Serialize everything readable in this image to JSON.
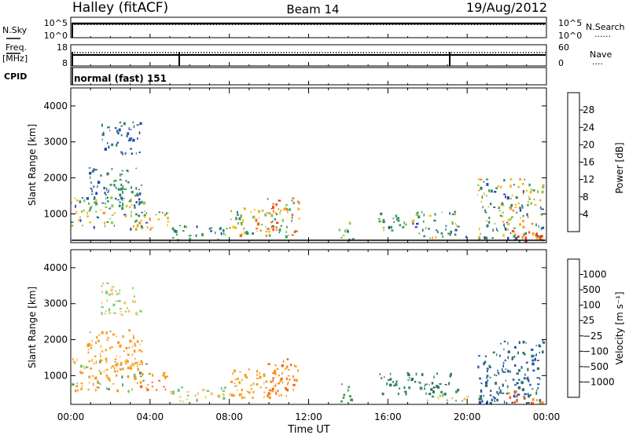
{
  "header": {
    "title": "Halley (fitACF)",
    "beam": "Beam 14",
    "date": "19/Aug/2012"
  },
  "nsky_panel": {
    "left_label": "N.Sky",
    "right_label": "N.Search",
    "left_ticks": [
      "10^5",
      "10^0"
    ],
    "right_ticks": [
      "10^5",
      "10^0"
    ],
    "right_legend_marker": "······"
  },
  "freq_panel": {
    "left_label_line1": "Freq.",
    "left_label_line2": "[MHz]",
    "right_label": "Nave",
    "left_ticks": [
      "18",
      "8"
    ],
    "right_ticks": [
      "60",
      "0"
    ],
    "right_legend_marker": "····"
  },
  "cpid_panel": {
    "label": "CPID",
    "mode": "normal (fast) 151"
  },
  "power_colorbar": {
    "label": "Power [dB]",
    "ticks": [
      "28",
      "24",
      "20",
      "16",
      "12",
      "8",
      "4"
    ],
    "colors": [
      "#0000ff",
      "#2548b2",
      "#2f7f6f",
      "#39a050",
      "#8cc84a",
      "#f0c010",
      "#f79a18",
      "#f06a1c",
      "#ff3a16",
      "#ff0000"
    ]
  },
  "velocity_colorbar": {
    "label": "Velocity [m s⁻¹]",
    "ticks": [
      "1000",
      "500",
      "100",
      "25",
      "−25",
      "−100",
      "−500",
      "−1000"
    ],
    "colors": [
      "#ff0000",
      "#f2661e",
      "#f79a18",
      "#f3c56a",
      "#b8b8b8",
      "#6cc86a",
      "#3c9a4c",
      "#2d7468",
      "#2552a8",
      "#1f3cc8"
    ]
  },
  "time_axis": {
    "label": "Time UT",
    "ticks": [
      "00:00",
      "04:00",
      "08:00",
      "12:00",
      "16:00",
      "20:00",
      "00:00"
    ]
  },
  "chart_data": [
    {
      "type": "heatmap",
      "name": "power",
      "ylabel": "Slant Range [km]",
      "xlabel": "Time UT",
      "xlim": [
        0,
        24
      ],
      "ylim": [
        200,
        4500
      ],
      "yticks": [
        "1000",
        "2000",
        "3000",
        "4000"
      ],
      "colorbar_range": [
        0,
        30
      ],
      "echo_regions": [
        {
          "t": [
            0.0,
            3.8
          ],
          "range": [
            600,
            1500
          ],
          "level": [
            4,
            20
          ]
        },
        {
          "t": [
            0.8,
            3.6
          ],
          "range": [
            1200,
            2300
          ],
          "level": [
            4,
            12
          ]
        },
        {
          "t": [
            1.5,
            3.5
          ],
          "range": [
            2700,
            3600
          ],
          "level": [
            4,
            8
          ]
        },
        {
          "t": [
            3.2,
            5.0
          ],
          "range": [
            600,
            1100
          ],
          "level": [
            8,
            24
          ]
        },
        {
          "t": [
            5.0,
            8.0
          ],
          "range": [
            300,
            700
          ],
          "level": [
            4,
            14
          ]
        },
        {
          "t": [
            8.0,
            11.0
          ],
          "range": [
            400,
            1200
          ],
          "level": [
            8,
            24
          ]
        },
        {
          "t": [
            9.8,
            11.5
          ],
          "range": [
            400,
            1500
          ],
          "level": [
            8,
            26
          ]
        },
        {
          "t": [
            13.5,
            14.2
          ],
          "range": [
            300,
            800
          ],
          "level": [
            8,
            14
          ]
        },
        {
          "t": [
            15.5,
            19.5
          ],
          "range": [
            500,
            1100
          ],
          "level": [
            4,
            16
          ]
        },
        {
          "t": [
            17.5,
            20.0
          ],
          "range": [
            300,
            500
          ],
          "level": [
            4,
            20
          ]
        },
        {
          "t": [
            20.5,
            23.8
          ],
          "range": [
            250,
            2000
          ],
          "level": [
            4,
            20
          ]
        },
        {
          "t": [
            22.0,
            23.8
          ],
          "range": [
            250,
            600
          ],
          "level": [
            18,
            30
          ]
        }
      ]
    },
    {
      "type": "heatmap",
      "name": "velocity",
      "ylabel": "Slant Range [km]",
      "xlabel": "Time UT",
      "xlim": [
        0,
        24
      ],
      "ylim": [
        200,
        4500
      ],
      "yticks": [
        "1000",
        "2000",
        "3000",
        "4000"
      ],
      "colorbar_range": [
        -1000,
        1000
      ],
      "echo_regions": [
        {
          "t": [
            0.0,
            3.8
          ],
          "range": [
            600,
            1500
          ],
          "velocity": [
            -500,
            100
          ]
        },
        {
          "t": [
            0.8,
            3.6
          ],
          "range": [
            1200,
            2300
          ],
          "velocity": [
            -500,
            -25
          ]
        },
        {
          "t": [
            1.5,
            3.5
          ],
          "range": [
            2700,
            3600
          ],
          "velocity": [
            -100,
            25
          ]
        },
        {
          "t": [
            3.2,
            5.0
          ],
          "range": [
            600,
            1100
          ],
          "velocity": [
            -1000,
            -100
          ]
        },
        {
          "t": [
            5.0,
            8.0
          ],
          "range": [
            300,
            700
          ],
          "velocity": [
            -100,
            25
          ]
        },
        {
          "t": [
            8.0,
            11.0
          ],
          "range": [
            400,
            1200
          ],
          "velocity": [
            -500,
            -25
          ]
        },
        {
          "t": [
            9.8,
            11.5
          ],
          "range": [
            400,
            1500
          ],
          "velocity": [
            -1000,
            -100
          ]
        },
        {
          "t": [
            13.5,
            14.2
          ],
          "range": [
            300,
            800
          ],
          "velocity": [
            25,
            100
          ]
        },
        {
          "t": [
            15.5,
            19.5
          ],
          "range": [
            500,
            1100
          ],
          "velocity": [
            25,
            500
          ]
        },
        {
          "t": [
            17.5,
            20.0
          ],
          "range": [
            300,
            500
          ],
          "velocity": [
            -100,
            100
          ]
        },
        {
          "t": [
            20.5,
            23.8
          ],
          "range": [
            250,
            2000
          ],
          "velocity": [
            100,
            1000
          ]
        },
        {
          "t": [
            22.0,
            23.8
          ],
          "range": [
            250,
            600
          ],
          "velocity": [
            -1000,
            -100
          ]
        }
      ]
    }
  ]
}
